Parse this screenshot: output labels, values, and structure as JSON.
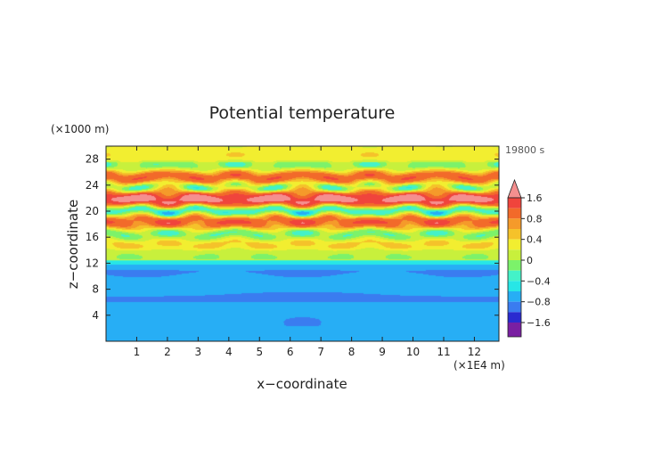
{
  "chart_data": {
    "type": "heatmap",
    "title": "Potential temperature",
    "xlabel": "x−coordinate",
    "ylabel": "z−coordinate",
    "x_unit": "(×1E4 m)",
    "y_unit": "(×1000 m)",
    "time_label": "19800 s",
    "xlim": [
      0,
      12.8
    ],
    "ylim": [
      0,
      30
    ],
    "x_ticks": [
      "1",
      "2",
      "3",
      "4",
      "5",
      "6",
      "7",
      "8",
      "9",
      "10",
      "11",
      "12"
    ],
    "y_ticks": [
      "4",
      "8",
      "12",
      "16",
      "20",
      "24",
      "28"
    ],
    "colorbar": {
      "levels": [
        -2.0,
        -1.6,
        -1.2,
        -0.8,
        -0.6,
        -0.4,
        -0.2,
        0,
        0.2,
        0.4,
        0.6,
        0.8,
        1.2,
        1.6,
        2.0
      ],
      "colors": [
        "#7a1fa2",
        "#2a2ad0",
        "#3a7cf0",
        "#27aef5",
        "#27e6e6",
        "#44f2c8",
        "#7cf26a",
        "#c8f03c",
        "#f2ee30",
        "#f5c22a",
        "#f59a2a",
        "#f26a2a",
        "#f0443c",
        "#f58f8f"
      ],
      "labels": [
        "1.6",
        "0.8",
        "0.4",
        "0",
        "−0.4",
        "−0.8",
        "−1.6"
      ],
      "extend": "both"
    },
    "grid": false,
    "field_description": "Smooth cool (negative) layers below ~14 km, oscillatory warm/cool lattice pattern between 14 and 30 km with maxima near 22-24 km."
  }
}
